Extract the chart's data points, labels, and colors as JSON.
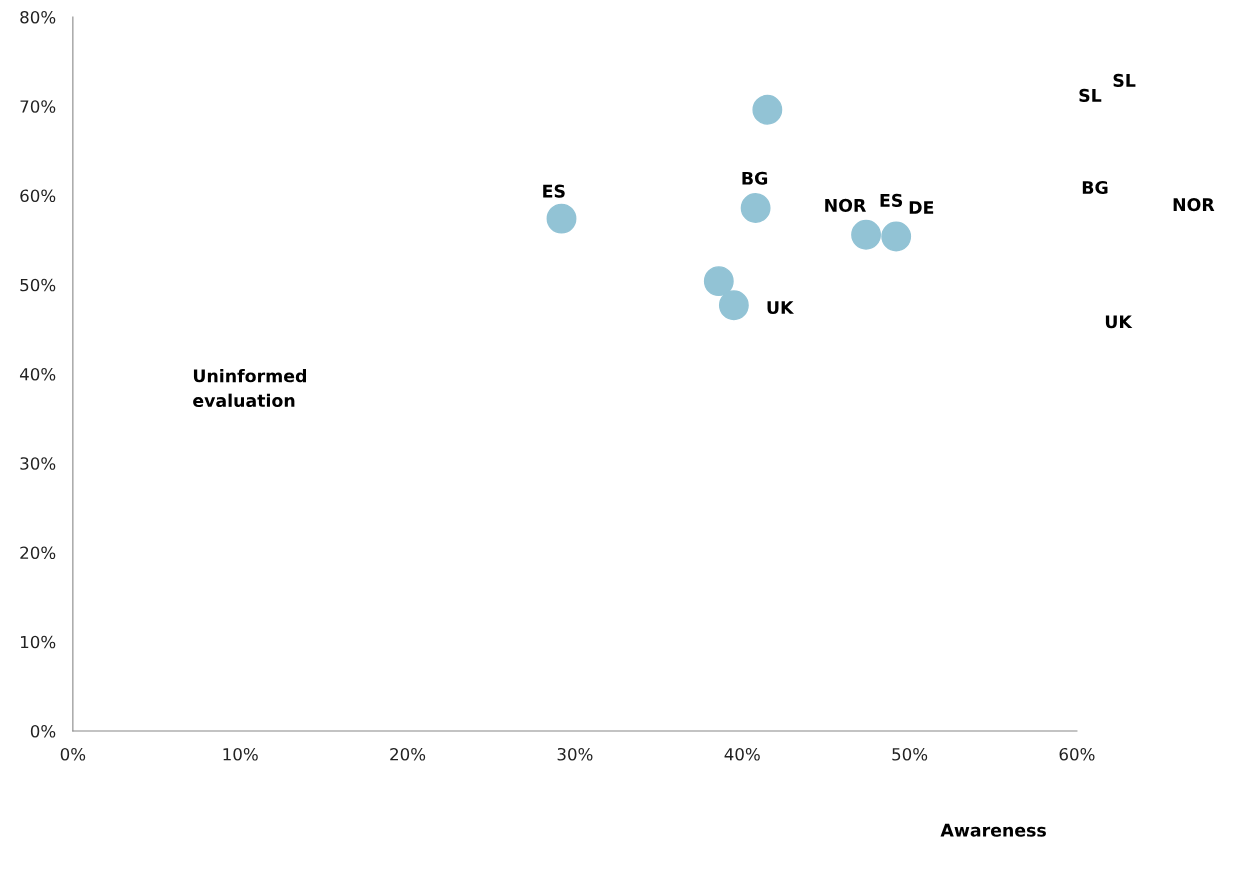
{
  "chart_data": {
    "type": "scatter",
    "x": [
      29.2,
      41.5,
      40.8,
      38.6,
      39.5,
      47.4,
      49.2
    ],
    "series": [
      {
        "color": "#92c3d5",
        "values": [
          57.4,
          69.6,
          58.6,
          50.4,
          47.7,
          55.6,
          55.4
        ]
      }
    ],
    "marker": "circle",
    "xlim": [
      0,
      60
    ],
    "ylim": [
      0,
      80
    ],
    "xticks": [
      {
        "value": 0,
        "label": "0%"
      },
      {
        "value": 10,
        "label": "10%"
      },
      {
        "value": 20,
        "label": "20%"
      },
      {
        "value": 30,
        "label": "30%"
      },
      {
        "value": 40,
        "label": "40%"
      },
      {
        "value": 50,
        "label": "50%"
      },
      {
        "value": 60,
        "label": "60%"
      }
    ],
    "yticks": [
      {
        "value": 0,
        "label": "0%"
      },
      {
        "value": 10,
        "label": "10%"
      },
      {
        "value": 20,
        "label": "20%"
      },
      {
        "value": 30,
        "label": "30%"
      },
      {
        "value": 40,
        "label": "40%"
      },
      {
        "value": 50,
        "label": "50%"
      },
      {
        "value": 60,
        "label": "60%"
      },
      {
        "value": 70,
        "label": "70%"
      },
      {
        "value": 80,
        "label": "80%"
      }
    ],
    "grid": false,
    "annotations": [
      "ES",
      "BG",
      "NOR",
      "ES",
      "DE",
      "UK",
      "SL",
      "SL",
      "BG",
      "NOR",
      "UK",
      "Uninformed\nevaluation",
      "Awareness"
    ]
  }
}
